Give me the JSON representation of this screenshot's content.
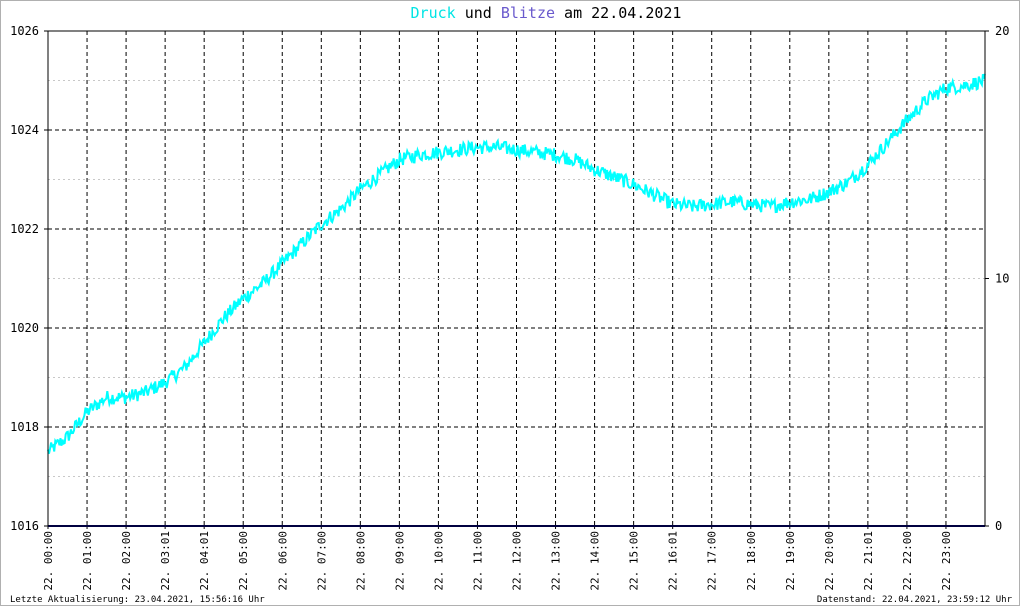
{
  "chart_data": {
    "type": "line",
    "title": {
      "parts": [
        {
          "text": "Druck",
          "color": "#00e5e5"
        },
        {
          "text": " und ",
          "color": "#000000"
        },
        {
          "text": "Blitze",
          "color": "#6a5acd"
        },
        {
          "text": " am 22.04.2021",
          "color": "#000000"
        }
      ]
    },
    "y_left": {
      "min": 1016,
      "max": 1026,
      "ticks": [
        "1016",
        "1018",
        "1020",
        "1022",
        "1024",
        "1026"
      ]
    },
    "y_right": {
      "min": 0,
      "max": 20,
      "ticks": [
        "0",
        "10",
        "20"
      ]
    },
    "x_labels": [
      "22. 00:00",
      "22. 01:00",
      "22. 02:00",
      "22. 03:01",
      "22. 04:01",
      "22. 05:00",
      "22. 06:00",
      "22. 07:00",
      "22. 08:00",
      "22. 09:00",
      "22. 10:00",
      "22. 11:00",
      "22. 12:00",
      "22. 13:00",
      "22. 14:00",
      "22. 15:00",
      "22. 16:01",
      "22. 17:00",
      "22. 18:00",
      "22. 19:00",
      "22. 20:00",
      "22. 21:01",
      "22. 22:00",
      "22. 23:00"
    ],
    "series": [
      {
        "name": "Druck",
        "color": "#00ffff",
        "axis": "left",
        "x_hours": [
          0,
          0.5,
          1,
          1.5,
          2,
          2.5,
          3,
          3.5,
          4,
          4.5,
          5,
          5.5,
          6,
          6.5,
          7,
          7.5,
          8,
          8.5,
          9,
          9.5,
          10,
          10.5,
          11,
          11.5,
          12,
          12.5,
          13,
          13.5,
          14,
          14.5,
          15,
          15.5,
          16,
          16.5,
          17,
          17.5,
          18,
          18.5,
          19,
          19.5,
          20,
          20.5,
          21,
          21.5,
          22,
          22.5,
          23,
          23.5,
          24
        ],
        "values": [
          1017.5,
          1017.8,
          1018.3,
          1018.6,
          1018.6,
          1018.7,
          1018.9,
          1019.2,
          1019.7,
          1020.2,
          1020.6,
          1020.9,
          1021.3,
          1021.7,
          1022.1,
          1022.4,
          1022.8,
          1023.1,
          1023.4,
          1023.5,
          1023.55,
          1023.6,
          1023.65,
          1023.65,
          1023.6,
          1023.55,
          1023.5,
          1023.4,
          1023.2,
          1023.05,
          1022.9,
          1022.7,
          1022.5,
          1022.45,
          1022.5,
          1022.55,
          1022.5,
          1022.45,
          1022.55,
          1022.6,
          1022.75,
          1022.95,
          1023.3,
          1023.75,
          1024.2,
          1024.6,
          1024.85,
          1024.9,
          1025.0
        ]
      },
      {
        "name": "Blitze",
        "color": "#000080",
        "axis": "right",
        "x_hours": [
          0,
          24
        ],
        "values": [
          0,
          0
        ]
      }
    ],
    "grid": true
  },
  "footer": {
    "left": "Letzte Aktualisierung: 23.04.2021, 15:56:16 Uhr",
    "right": "Datenstand: 22.04.2021, 23:59:12 Uhr"
  }
}
